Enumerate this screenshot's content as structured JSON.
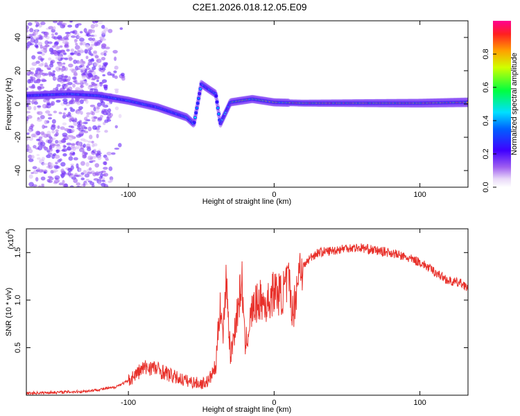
{
  "figure_title": "C2E1.2026.018.12.05.E09",
  "chart_data": [
    {
      "type": "heatmap",
      "title": "C2E1.2026.018.12.05.E09",
      "xlabel": "Height of straight line (km)",
      "ylabel": "Frequency (Hz)",
      "xlim": [
        -170,
        133
      ],
      "ylim": [
        -50,
        50
      ],
      "xticks": [
        -100,
        0,
        100
      ],
      "yticks": [
        -40,
        -20,
        0,
        20,
        40
      ],
      "xtick_labels": [
        "-100",
        "0",
        "100"
      ],
      "ytick_labels": [
        "-40",
        "-20",
        "0",
        "20",
        "40"
      ],
      "colorbar": {
        "label": "Normalized spectral amplitude",
        "range": [
          0,
          1
        ],
        "ticks": [
          0,
          0.2,
          0.4,
          0.6,
          0.8
        ],
        "tick_labels": [
          "0.0",
          "0.2",
          "0.4",
          "0.6",
          "0.8"
        ],
        "colormap": "rainbow (white-violet-blue-cyan-green-yellow-red-magenta)"
      },
      "ridge": [
        {
          "x": -170,
          "freq": 5
        },
        {
          "x": -140,
          "freq": 6
        },
        {
          "x": -120,
          "freq": 5
        },
        {
          "x": -100,
          "freq": 2
        },
        {
          "x": -80,
          "freq": -2
        },
        {
          "x": -60,
          "freq": -8
        },
        {
          "x": -55,
          "freq": -12
        },
        {
          "x": -50,
          "freq": 12
        },
        {
          "x": -40,
          "freq": 6
        },
        {
          "x": -37,
          "freq": -12
        },
        {
          "x": -30,
          "freq": 1
        },
        {
          "x": -15,
          "freq": 3
        },
        {
          "x": 0,
          "freq": 1
        },
        {
          "x": 20,
          "freq": 0.5
        },
        {
          "x": 60,
          "freq": 0.5
        },
        {
          "x": 100,
          "freq": 0.5
        },
        {
          "x": 133,
          "freq": 1
        }
      ]
    },
    {
      "type": "line",
      "xlabel": "Height of straight line (km)",
      "ylabel": "SNR (10 * v/v)",
      "y_multiplier_label": "(x10",
      "y_multiplier_exp": "4",
      "y_multiplier_close": ")",
      "xlim": [
        -170,
        133
      ],
      "ylim": [
        0,
        1.75
      ],
      "xticks": [
        -100,
        0,
        100
      ],
      "yticks": [
        0.5,
        1.0,
        1.5
      ],
      "xtick_labels": [
        "-100",
        "0",
        "100"
      ],
      "ytick_labels": [
        "0.5",
        "1.0",
        "1.5"
      ],
      "series": [
        {
          "name": "SNR",
          "color": "#e8302a",
          "x": [
            -170,
            -150,
            -130,
            -120,
            -110,
            -100,
            -95,
            -90,
            -85,
            -80,
            -75,
            -70,
            -60,
            -50,
            -45,
            -40,
            -37,
            -35,
            -33,
            -30,
            -27,
            -25,
            -22,
            -20,
            -15,
            -10,
            -5,
            0,
            5,
            10,
            13,
            15,
            18,
            20,
            25,
            30,
            40,
            50,
            60,
            70,
            80,
            90,
            100,
            110,
            120,
            130,
            133
          ],
          "values": [
            0.02,
            0.03,
            0.04,
            0.06,
            0.08,
            0.15,
            0.22,
            0.28,
            0.3,
            0.27,
            0.24,
            0.2,
            0.15,
            0.12,
            0.15,
            0.3,
            1.0,
            0.6,
            1.3,
            0.4,
            0.7,
            0.9,
            1.2,
            0.5,
            0.9,
            1.0,
            0.95,
            1.1,
            1.05,
            1.2,
            0.85,
            1.1,
            1.4,
            1.35,
            1.45,
            1.5,
            1.52,
            1.55,
            1.55,
            1.52,
            1.5,
            1.45,
            1.4,
            1.3,
            1.2,
            1.17,
            1.1
          ]
        }
      ]
    }
  ],
  "colors": {
    "snr_line": "#e8302a",
    "axis": "#000000",
    "background": "#ffffff"
  }
}
